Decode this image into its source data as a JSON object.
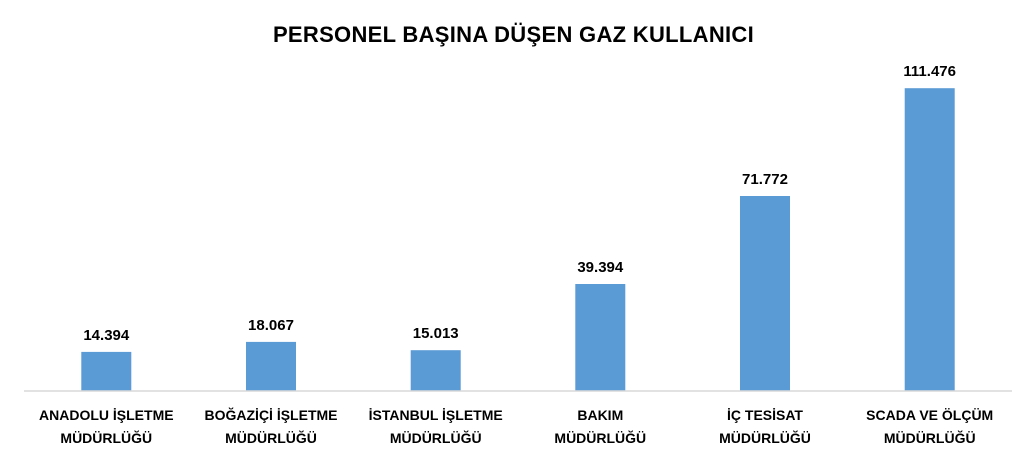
{
  "chart_data": {
    "type": "bar",
    "title": "PERSONEL BAŞINA DÜŞEN GAZ KULLANICI",
    "categories": [
      [
        "ANADOLU İŞLETME",
        "MÜDÜRLÜĞÜ"
      ],
      [
        "BOĞAZİÇİ İŞLETME",
        "MÜDÜRLÜĞÜ"
      ],
      [
        "İSTANBUL İŞLETME",
        "MÜDÜRLÜĞÜ"
      ],
      [
        "BAKIM",
        "MÜDÜRLÜĞÜ"
      ],
      [
        "İÇ TESİSAT",
        "MÜDÜRLÜĞÜ"
      ],
      [
        "SCADA VE ÖLÇÜM",
        "MÜDÜRLÜĞÜ"
      ]
    ],
    "values": [
      14394,
      18067,
      15013,
      39394,
      71772,
      111476
    ],
    "data_labels": [
      "14.394",
      "18.067",
      "15.013",
      "39.394",
      "71.772",
      "111.476"
    ],
    "ylim": [
      0,
      120000
    ],
    "grid": false,
    "legend": "none",
    "bar_color": "#5B9BD5",
    "axis_color": "#D9D9D9"
  }
}
